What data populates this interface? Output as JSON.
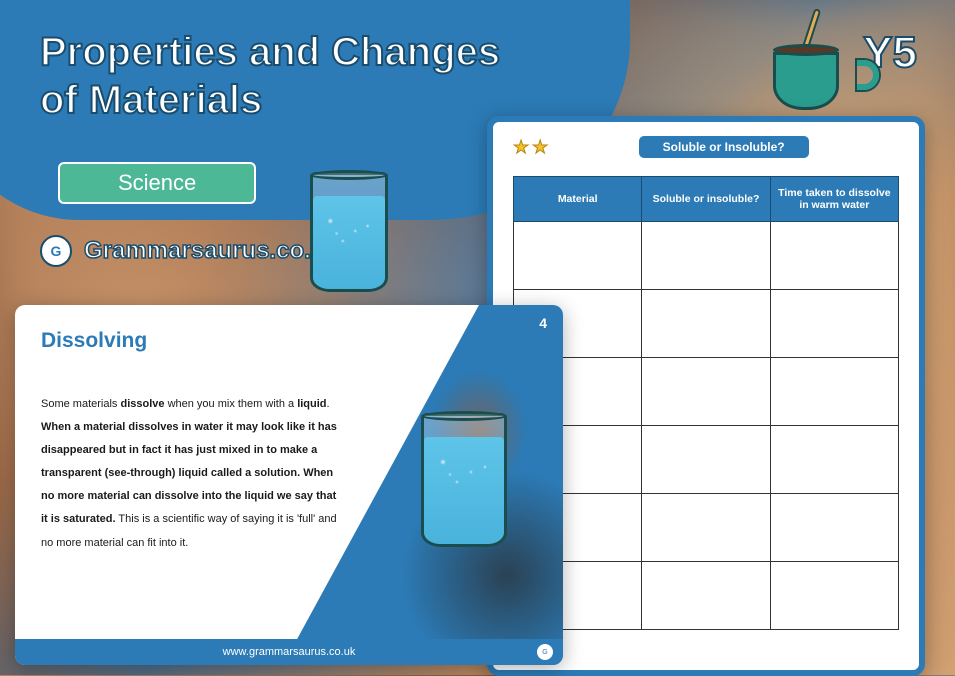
{
  "header": {
    "title_line1": "Properties and Changes",
    "title_line2": "of Materials",
    "year_badge": "Y5",
    "subject": "Science",
    "brand_text": "Grammarsaurus.co.uk",
    "brand_glyph": "G"
  },
  "colors": {
    "primary_blue": "#2c7bb6",
    "subject_green": "#4cb896",
    "water_blue": "#5ec4e8",
    "star_yellow": "#f4c430"
  },
  "worksheet": {
    "title": "Soluble or Insoluble?",
    "star_count": 2,
    "columns": [
      "Material",
      "Soluble or insoluble?",
      "Time taken to dissolve in warm water"
    ],
    "row_count": 6
  },
  "slide": {
    "number": "4",
    "title": "Dissolving",
    "body_html": "Some materials <b>dissolve</b> when you mix them with a <b>liquid</b>. <b>When a material dissolves in water it may look like it has disappeared but in fact it has just mixed in to make a transparent (see-through) liquid called a solution. When no more material can dissolve into the liquid we say that it is saturated.</b> This is a scientific way of saying it is 'full' and no more material can fit into it.",
    "footer": "www.grammarsaurus.co.uk",
    "footer_glyph": "G"
  }
}
